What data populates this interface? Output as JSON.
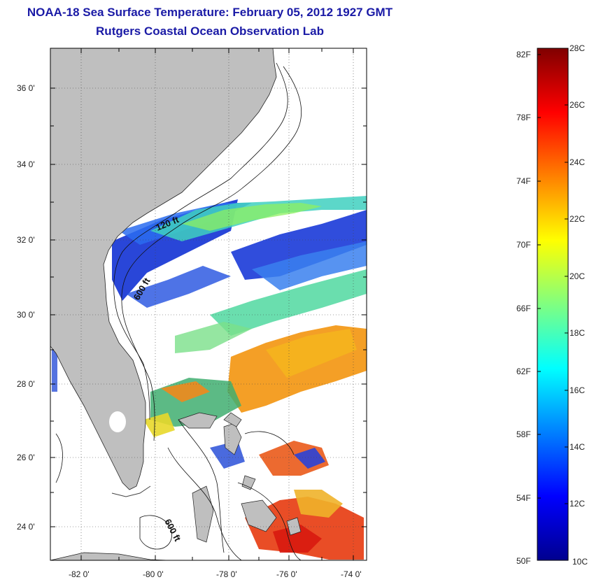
{
  "title": {
    "line1": "NOAA-18 Sea Surface Temperature:  February 05, 2012 1927 GMT",
    "line2": "Rutgers Coastal Ocean Observation Lab"
  },
  "map": {
    "lat_ticks": [
      "36 0'",
      "34 0'",
      "32 0'",
      "30 0'",
      "28 0'",
      "26 0'",
      "24 0'"
    ],
    "lon_ticks": [
      "-82 0'",
      "-80 0'",
      "-78 0'",
      "-76 0'",
      "-74 0'"
    ],
    "isobath_labels": [
      "120 ft",
      "600 ft",
      "600 ft"
    ],
    "land_color": "#bfbfbf",
    "no_data_color": "#ffffff"
  },
  "colorbar": {
    "fahrenheit_labels": [
      "82F",
      "78F",
      "74F",
      "70F",
      "66F",
      "62F",
      "58F",
      "54F",
      "50F"
    ],
    "celsius_labels": [
      "28C",
      "26C",
      "24C",
      "22C",
      "20C",
      "18C",
      "16C",
      "14C",
      "12C",
      "10C"
    ],
    "min_c": 10,
    "max_c": 28,
    "colors": [
      "#00008f",
      "#0000ff",
      "#0080ff",
      "#00ffff",
      "#80ff80",
      "#ffff00",
      "#ff8000",
      "#ff0000",
      "#800000"
    ]
  }
}
